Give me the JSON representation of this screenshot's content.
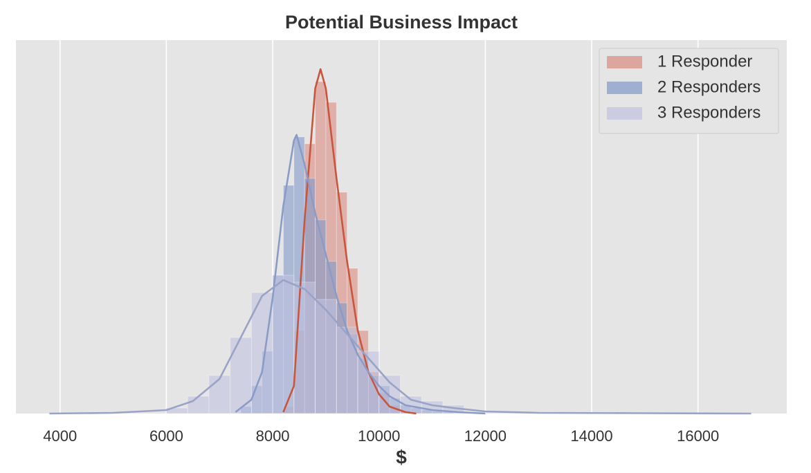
{
  "chart_data": {
    "type": "histogram",
    "title": "Potential Business Impact",
    "x_label": "$",
    "xlim": [
      3170,
      17670
    ],
    "ylim": [
      0,
      0.00108
    ],
    "xticks": [
      4000,
      6000,
      8000,
      10000,
      12000,
      14000,
      16000
    ],
    "grid": true,
    "legend": "upper right",
    "series": [
      {
        "name": "1 Responder",
        "color": "#d98c80",
        "line_color": "#c8553d",
        "bins": [
          8200,
          8400,
          8600,
          8800,
          9000,
          9200,
          9400,
          9600,
          9800,
          10000,
          10200,
          10400,
          10600,
          10800
        ],
        "values": [
          2e-05,
          0.00024,
          0.00078,
          0.00096,
          0.0009,
          0.00064,
          0.00042,
          0.00024,
          0.00012,
          6e-05,
          2.4e-05,
          8e-06,
          4e-06
        ],
        "kde_x": [
          8200,
          8400,
          8600,
          8800,
          8900,
          9000,
          9200,
          9400,
          9600,
          9800,
          10000,
          10200,
          10500,
          10700
        ],
        "kde_y": [
          4e-06,
          8e-05,
          0.00056,
          0.00094,
          0.000996,
          0.00094,
          0.00068,
          0.00044,
          0.00024,
          0.00012,
          5.6e-05,
          2e-05,
          4e-06,
          0
        ]
      },
      {
        "name": "2 Responders",
        "color": "#8299c9",
        "line_color": "#8a9cc5",
        "bins": [
          7400,
          7600,
          7800,
          8000,
          8200,
          8400,
          8600,
          8800,
          9000,
          9200,
          9400,
          9600,
          9800,
          10000,
          10200,
          10400,
          10600,
          10800,
          11000,
          11200,
          11400
        ],
        "values": [
          2e-05,
          8e-05,
          0.00018,
          0.0004,
          0.00066,
          0.0008,
          0.00068,
          0.00056,
          0.00044,
          0.00032,
          0.00023,
          0.00016,
          0.00011,
          8e-05,
          4.4e-05,
          2.4e-05,
          1.6e-05,
          1e-05,
          6e-06,
          4e-06
        ],
        "kde_x": [
          7300,
          7600,
          7800,
          8000,
          8200,
          8400,
          8450,
          8600,
          8800,
          9000,
          9200,
          9400,
          9600,
          9800,
          10000,
          10200,
          10500,
          11000,
          11500,
          12000
        ],
        "kde_y": [
          4e-06,
          4e-05,
          0.00012,
          0.000336,
          0.0006,
          0.00079,
          0.000806,
          0.00072,
          0.00058,
          0.00046,
          0.00034,
          0.00024,
          0.00017,
          0.00012,
          8e-05,
          5e-05,
          2.4e-05,
          1e-05,
          4e-06,
          0
        ]
      },
      {
        "name": "3 Responders",
        "color": "#c0c2df",
        "line_color": "#9aa3c6",
        "bins": [
          6000,
          6400,
          6800,
          7200,
          7600,
          8000,
          8400,
          8800,
          9200,
          9600,
          10000,
          10400,
          10800,
          11200,
          11600
        ],
        "values": [
          1.6e-05,
          5e-05,
          0.00011,
          0.00022,
          0.00035,
          0.0004,
          0.00038,
          0.00033,
          0.00025,
          0.00018,
          0.00011,
          5e-05,
          3.6e-05,
          2.4e-05
        ],
        "kde_x": [
          3800,
          5000,
          6000,
          6500,
          7000,
          7400,
          7800,
          8200,
          8600,
          9000,
          9400,
          9800,
          10200,
          10600,
          11000,
          11400,
          12000,
          13000,
          15000,
          17000
        ],
        "kde_y": [
          0,
          2e-06,
          1e-05,
          3.6e-05,
          0.0001,
          0.00022,
          0.00034,
          0.000386,
          0.00036,
          0.0003,
          0.00023,
          0.00016,
          9e-05,
          4e-05,
          2.4e-05,
          1.6e-05,
          6e-06,
          2e-06,
          1e-06,
          0
        ]
      }
    ]
  }
}
